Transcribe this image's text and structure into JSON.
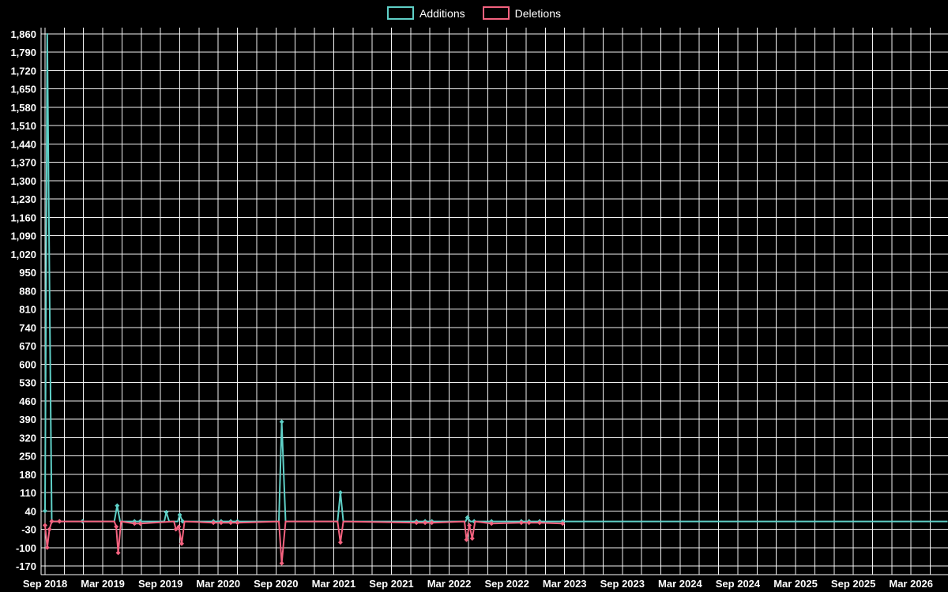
{
  "colors": {
    "background": "#000000",
    "grid": "#ffffff",
    "text": "#ffffff",
    "additions": "#5fd0c7",
    "deletions": "#f4627f"
  },
  "chart_data": {
    "type": "line",
    "title": "",
    "legend_position": "top-center",
    "grid": true,
    "legend": [
      {
        "label": "Additions",
        "color": "#5fd0c7"
      },
      {
        "label": "Deletions",
        "color": "#f4627f"
      }
    ],
    "ylim": [
      -170,
      1860
    ],
    "y_ticks": [
      -170,
      -100,
      -30,
      40,
      110,
      180,
      250,
      320,
      390,
      460,
      530,
      600,
      670,
      740,
      810,
      880,
      950,
      1020,
      1090,
      1160,
      1230,
      1300,
      1370,
      1440,
      1510,
      1580,
      1650,
      1720,
      1790,
      1860
    ],
    "y_tick_labels": [
      "-170",
      "-100",
      "-30",
      "40",
      "110",
      "180",
      "250",
      "320",
      "390",
      "460",
      "530",
      "600",
      "670",
      "740",
      "810",
      "880",
      "950",
      "1,020",
      "1,090",
      "1,160",
      "1,230",
      "1,300",
      "1,370",
      "1,440",
      "1,510",
      "1,580",
      "1,650",
      "1,720",
      "1,790",
      "1,860"
    ],
    "x_tick_labels": [
      "Sep 2018",
      "Mar 2019",
      "Sep 2019",
      "Mar 2020",
      "Sep 2020",
      "Mar 2021",
      "Sep 2021",
      "Mar 2022",
      "Sep 2022",
      "Mar 2023",
      "Sep 2023",
      "Mar 2024",
      "Sep 2024",
      "Mar 2025",
      "Sep 2025",
      "Mar 2026"
    ],
    "x_tick_months": [
      0,
      6,
      12,
      18,
      24,
      30,
      36,
      42,
      48,
      54,
      60,
      66,
      72,
      78,
      84,
      90
    ],
    "x_range_months": [
      0,
      93.8
    ],
    "grid_step_months": 2,
    "series": [
      {
        "name": "Additions",
        "color": "#5fd0c7",
        "points": [
          [
            0.0,
            40,
            1
          ],
          [
            0.23,
            1860,
            0
          ],
          [
            0.46,
            915,
            0
          ],
          [
            0.7,
            0,
            1
          ],
          [
            1.5,
            0,
            1
          ],
          [
            3.9,
            0,
            1
          ],
          [
            7.2,
            0,
            0
          ],
          [
            7.5,
            60,
            1
          ],
          [
            7.8,
            0,
            0
          ],
          [
            9.3,
            0,
            1
          ],
          [
            9.9,
            0,
            1
          ],
          [
            12.4,
            0,
            0
          ],
          [
            12.6,
            35,
            1
          ],
          [
            12.9,
            0,
            0
          ],
          [
            13.8,
            0,
            0
          ],
          [
            14.0,
            25,
            1
          ],
          [
            14.3,
            0,
            1
          ],
          [
            17.5,
            0,
            1
          ],
          [
            18.3,
            0,
            1
          ],
          [
            19.3,
            0,
            1
          ],
          [
            20.0,
            0,
            1
          ],
          [
            24.3,
            0,
            0
          ],
          [
            24.6,
            380,
            1
          ],
          [
            25.0,
            0,
            0
          ],
          [
            30.4,
            0,
            0
          ],
          [
            30.7,
            110,
            1
          ],
          [
            31.0,
            0,
            0
          ],
          [
            38.6,
            0,
            1
          ],
          [
            39.5,
            0,
            1
          ],
          [
            40.2,
            0,
            1
          ],
          [
            43.7,
            0,
            0
          ],
          [
            43.9,
            15,
            1
          ],
          [
            44.2,
            0,
            0
          ],
          [
            44.6,
            0,
            1
          ],
          [
            46.4,
            0,
            1
          ],
          [
            49.5,
            0,
            1
          ],
          [
            50.3,
            0,
            1
          ],
          [
            51.4,
            0,
            1
          ],
          [
            53.8,
            0,
            1
          ],
          [
            93.8,
            0,
            0
          ]
        ]
      },
      {
        "name": "Deletions",
        "color": "#f4627f",
        "points": [
          [
            0.0,
            -15,
            1
          ],
          [
            0.23,
            -100,
            1
          ],
          [
            0.46,
            -30,
            1
          ],
          [
            0.7,
            0,
            1
          ],
          [
            1.5,
            0,
            1
          ],
          [
            7.2,
            0,
            0
          ],
          [
            7.4,
            -20,
            1
          ],
          [
            7.6,
            -120,
            1
          ],
          [
            7.9,
            0,
            0
          ],
          [
            9.3,
            -8,
            1
          ],
          [
            9.9,
            -8,
            1
          ],
          [
            13.4,
            0,
            0
          ],
          [
            13.6,
            -30,
            1
          ],
          [
            13.9,
            -20,
            1
          ],
          [
            14.2,
            -85,
            1
          ],
          [
            14.5,
            0,
            0
          ],
          [
            17.5,
            -5,
            1
          ],
          [
            18.3,
            -5,
            1
          ],
          [
            19.3,
            -5,
            1
          ],
          [
            20.0,
            -5,
            1
          ],
          [
            24.3,
            0,
            0
          ],
          [
            24.6,
            -160,
            1
          ],
          [
            25.0,
            0,
            0
          ],
          [
            30.4,
            0,
            0
          ],
          [
            30.7,
            -80,
            1
          ],
          [
            31.0,
            0,
            0
          ],
          [
            38.6,
            -5,
            1
          ],
          [
            39.5,
            -5,
            1
          ],
          [
            40.2,
            -5,
            1
          ],
          [
            43.6,
            0,
            0
          ],
          [
            43.8,
            -70,
            1
          ],
          [
            44.1,
            -15,
            1
          ],
          [
            44.4,
            -65,
            1
          ],
          [
            44.7,
            0,
            0
          ],
          [
            46.4,
            -8,
            1
          ],
          [
            49.5,
            -5,
            1
          ],
          [
            50.3,
            -5,
            1
          ],
          [
            51.4,
            -5,
            1
          ],
          [
            53.8,
            -8,
            1
          ]
        ]
      }
    ]
  }
}
